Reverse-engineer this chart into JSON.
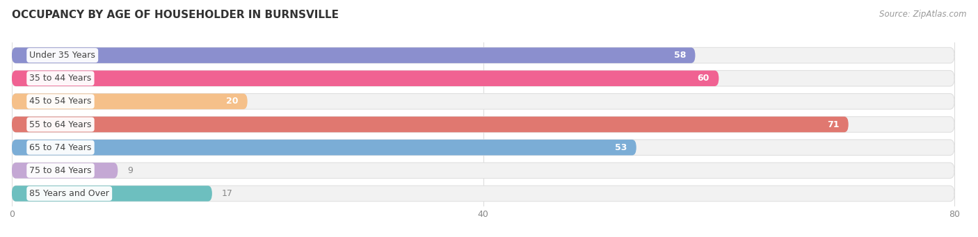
{
  "title": "OCCUPANCY BY AGE OF HOUSEHOLDER IN BURNSVILLE",
  "source": "Source: ZipAtlas.com",
  "categories": [
    "Under 35 Years",
    "35 to 44 Years",
    "45 to 54 Years",
    "55 to 64 Years",
    "65 to 74 Years",
    "75 to 84 Years",
    "85 Years and Over"
  ],
  "values": [
    58,
    60,
    20,
    71,
    53,
    9,
    17
  ],
  "bar_colors": [
    "#8b8fce",
    "#f06292",
    "#f5c08a",
    "#e07870",
    "#7badd6",
    "#c4a8d4",
    "#6dbfbf"
  ],
  "bar_bg_color": "#f2f2f2",
  "bar_border_color": "#e0e0e0",
  "xlim_min": 0,
  "xlim_max": 80,
  "xticks": [
    0,
    40,
    80
  ],
  "fig_bg_color": "#ffffff",
  "plot_bg_color": "#ffffff",
  "title_fontsize": 11,
  "source_fontsize": 8.5,
  "bar_height": 0.68,
  "bar_gap": 0.32,
  "value_label_inside_color": "#ffffff",
  "value_label_outside_color": "#888888",
  "label_fontsize": 9,
  "value_fontsize": 9,
  "grid_color": "#dddddd",
  "tick_color": "#888888"
}
